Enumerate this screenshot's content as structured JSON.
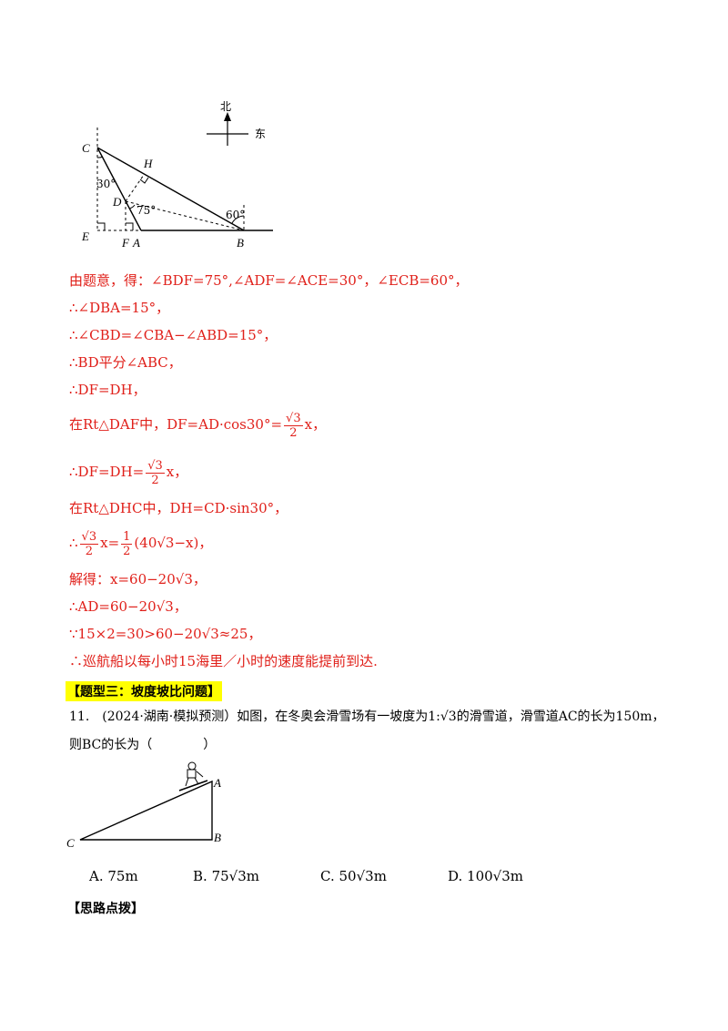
{
  "figure1": {
    "compass": {
      "north": "北",
      "east": "东"
    },
    "labels": {
      "C": "C",
      "H": "H",
      "D": "D",
      "E": "E",
      "F": "F",
      "A": "A",
      "B": "B",
      "angle30": "30°",
      "angle75": "75°",
      "angle60": "60°"
    }
  },
  "solution": {
    "l1": "由题意，得：∠BDF=75°,∠ADF=∠ACE=30°，∠ECB=60°，",
    "l2": "∴∠DBA=15°，",
    "l3": "∴∠CBD=∠CBA−∠ABD=15°，",
    "l4": "∴BD平分∠ABC，",
    "l5": "∴DF=DH，",
    "l6_prefix": "在Rt△DAF中，DF=AD·cos30°=",
    "l6_num": "√3",
    "l6_den": "2",
    "l6_suffix": "x，",
    "l7_prefix": "∴DF=DH=",
    "l7_num": "√3",
    "l7_den": "2",
    "l7_suffix": "x，",
    "l8": "在Rt△DHC中，DH=CD·sin30°，",
    "l9_prefix": "∴",
    "l9_num1": "√3",
    "l9_den1": "2",
    "l9_mid": "x=",
    "l9_num2": "1",
    "l9_den2": "2",
    "l9_suffix": "(40√3−x)，",
    "l10": "解得：x=60−20√3，",
    "l11": "∴AD=60−20√3，",
    "l12": "∵15×2=30>60−20√3≈25，",
    "l13": "∴巡航船以每小时15海里／小时的速度能提前到达."
  },
  "section_heading": "【题型三：坡度坡比问题】",
  "question": {
    "line1": "11.　(2024·湖南·模拟预测）如图，在冬奥会滑雪场有一坡度为1:√3的滑雪道，滑雪道AC的长为150m，",
    "line2": "则BC的长为（　　　　）"
  },
  "figure2": {
    "labels": {
      "A": "A",
      "B": "B",
      "C": "C"
    }
  },
  "options": [
    {
      "letter": "A.",
      "text": "75m"
    },
    {
      "letter": "B.",
      "text": "75√3m"
    },
    {
      "letter": "C.",
      "text": "50√3m"
    },
    {
      "letter": "D.",
      "text": "100√3m"
    }
  ],
  "hint_heading": "【思路点拨】"
}
